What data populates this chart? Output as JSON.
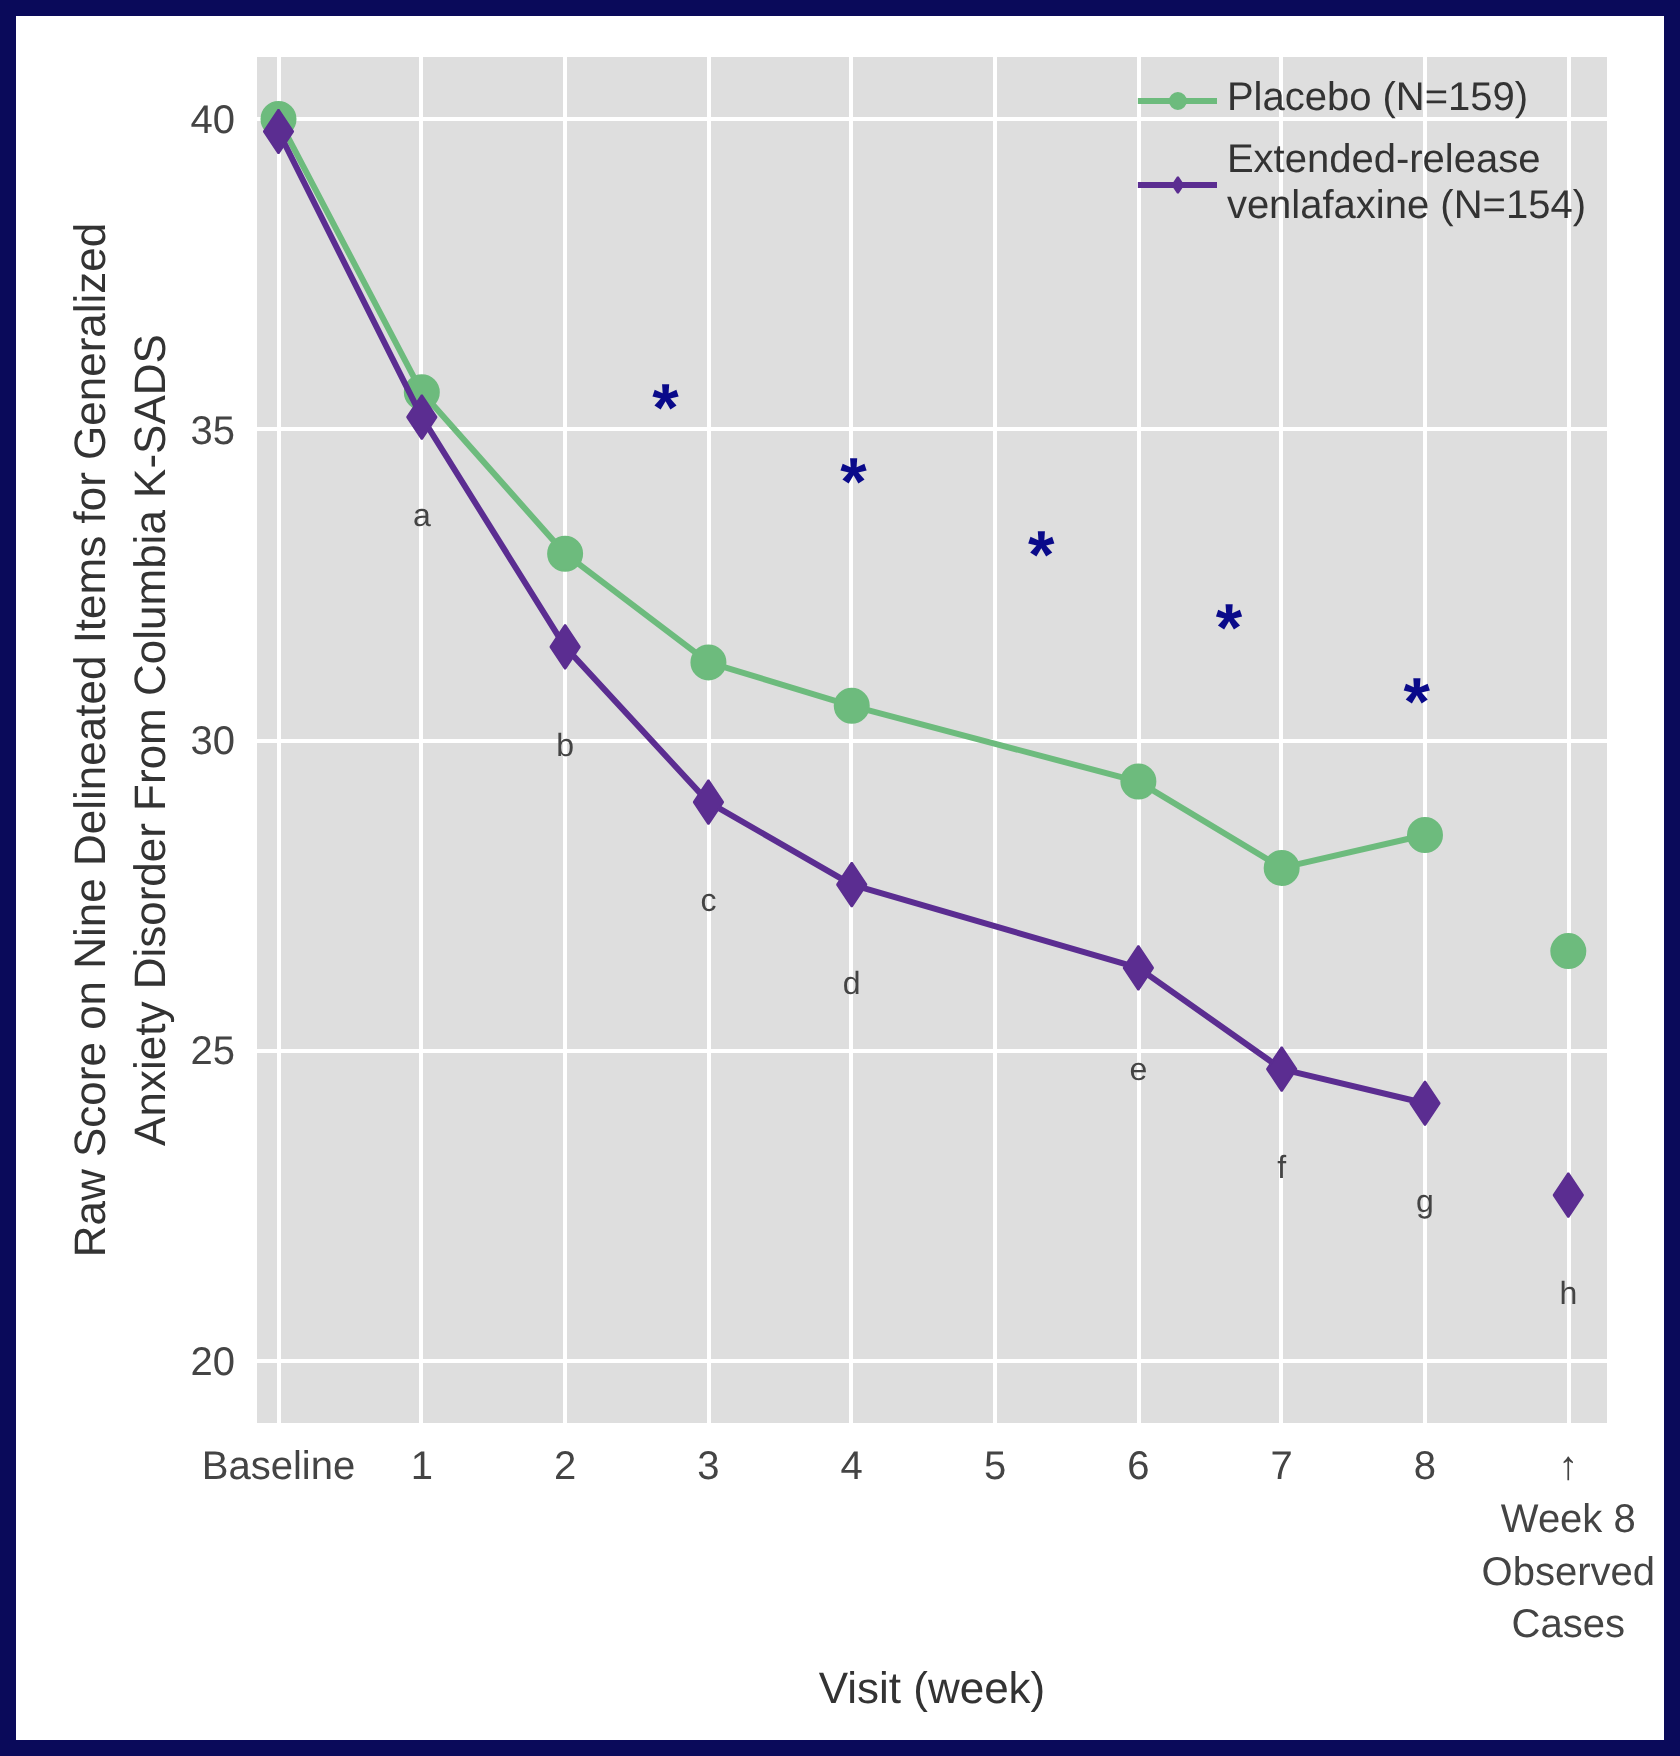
{
  "chart_data": {
    "type": "line",
    "xlabel": "Visit (week)",
    "ylabel": "Raw Score on Nine Delineated Items for Generalized\nAnxiety Disorder From Columbia K-SADS",
    "xlim": [
      -0.15,
      9.27
    ],
    "ylim": [
      19.0,
      41.0
    ],
    "xticks": [
      {
        "value": 0,
        "label": "Baseline"
      },
      1,
      2,
      3,
      4,
      5,
      6,
      7,
      8,
      {
        "value": 9,
        "label": "↑\nWeek 8\nObserved\nCases"
      }
    ],
    "yticks": [
      20,
      25,
      30,
      35,
      40
    ],
    "grid": true,
    "legend": "top right",
    "series": [
      {
        "name": "Placebo (N=159)",
        "color": "#6dbb7d",
        "marker": "circle",
        "x": [
          0,
          1,
          2,
          3,
          4,
          6,
          7,
          8
        ],
        "values": [
          40.0,
          35.6,
          33.0,
          31.25,
          30.55,
          29.33,
          27.94,
          28.47
        ]
      },
      {
        "name": "Extended-release\nvenlafaxine (N=154)",
        "color": "#5b2d91",
        "marker": "diamond",
        "x": [
          0,
          1,
          2,
          3,
          4,
          6,
          7,
          8
        ],
        "values": [
          39.8,
          35.2,
          31.5,
          29.0,
          27.67,
          26.33,
          24.7,
          24.15
        ]
      },
      {
        "color": "#6dbb7d",
        "marker": "circle",
        "x": [
          9
        ],
        "values": [
          26.6
        ]
      },
      {
        "color": "#5b2d91",
        "marker": "diamond",
        "x": [
          9
        ],
        "values": [
          22.67
        ]
      }
    ],
    "annotations": [
      {
        "text": "a",
        "x": 1,
        "y": 35.2
      },
      {
        "text": "b",
        "x": 2,
        "y": 31.5
      },
      {
        "text": "c",
        "x": 3,
        "y": 29.0
      },
      {
        "text": "d",
        "x": 4,
        "y": 27.67
      },
      {
        "text": "e",
        "x": 6,
        "y": 26.33
      },
      {
        "text": "f",
        "x": 7,
        "y": 24.7
      },
      {
        "text": "g",
        "x": 8,
        "y": 24.15
      },
      {
        "text": "h",
        "x": 9,
        "y": 22.67
      },
      "*",
      "*",
      "*",
      "*",
      "*"
    ]
  }
}
